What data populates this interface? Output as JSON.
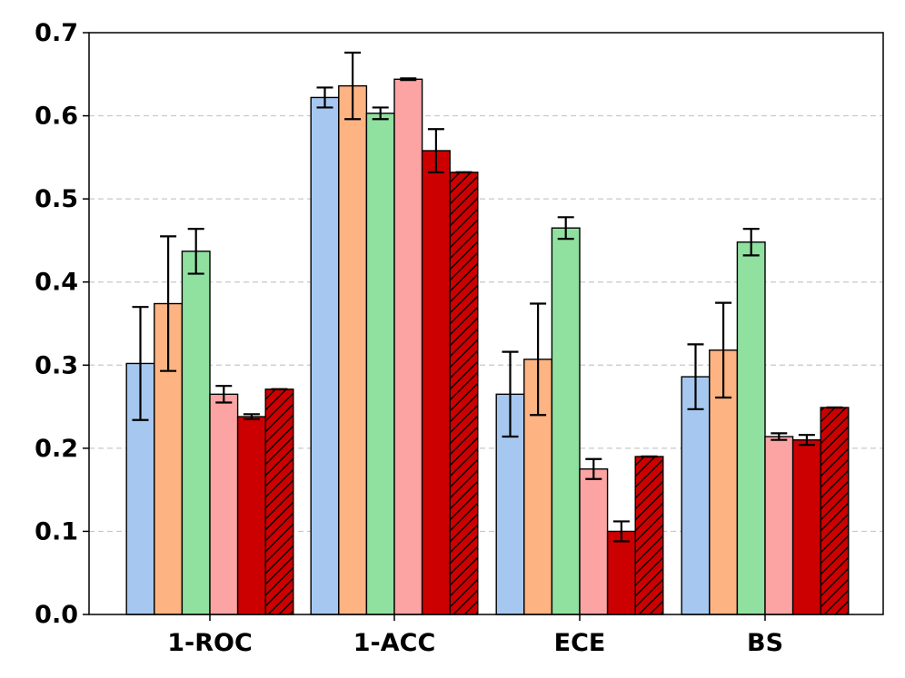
{
  "chart_data": {
    "type": "bar",
    "title": "",
    "xlabel": "",
    "ylabel": "",
    "ylim": [
      0,
      0.7
    ],
    "yticks": [
      0.0,
      0.1,
      0.2,
      0.3,
      0.4,
      0.5,
      0.6,
      0.7
    ],
    "ytick_labels": [
      "0.0",
      "0.1",
      "0.2",
      "0.3",
      "0.4",
      "0.5",
      "0.6",
      "0.7"
    ],
    "grid": "y-dashed",
    "categories": [
      "1-ROC",
      "1-ACC",
      "ECE",
      "BS"
    ],
    "series": [
      {
        "color": "#a6c8f0",
        "hatch": false,
        "values": [
          0.302,
          0.622,
          0.265,
          0.286
        ],
        "errors": [
          0.068,
          0.012,
          0.051,
          0.039
        ]
      },
      {
        "color": "#fdb382",
        "hatch": false,
        "values": [
          0.374,
          0.636,
          0.307,
          0.318
        ],
        "errors": [
          0.081,
          0.04,
          0.067,
          0.057
        ]
      },
      {
        "color": "#90e0a0",
        "hatch": false,
        "values": [
          0.437,
          0.603,
          0.465,
          0.448
        ],
        "errors": [
          0.027,
          0.007,
          0.013,
          0.016
        ]
      },
      {
        "color": "#fca3a3",
        "hatch": false,
        "values": [
          0.265,
          0.644,
          0.175,
          0.214
        ],
        "errors": [
          0.01,
          0.001,
          0.012,
          0.004
        ]
      },
      {
        "color": "#cc0000",
        "hatch": false,
        "values": [
          0.238,
          0.558,
          0.1,
          0.21
        ],
        "errors": [
          0.003,
          0.026,
          0.012,
          0.006
        ]
      },
      {
        "color": "#cc0000",
        "hatch": true,
        "values": [
          0.271,
          0.532,
          0.19,
          0.249
        ],
        "errors": [
          0,
          0,
          0,
          0
        ]
      }
    ]
  }
}
